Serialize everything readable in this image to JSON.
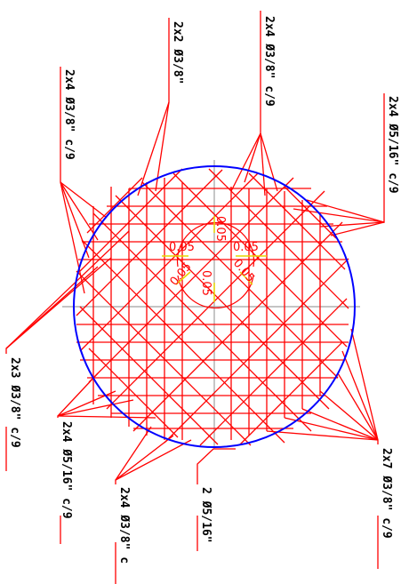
{
  "labels": {
    "l1": "2x4 Ø3/8\" c/9",
    "l2": "2x2 Ø3/8\"",
    "l3": "2x4 Ø3/8\" c/9",
    "l4": "2x4 Ø5/16\" c/9",
    "l5": "2x3 Ø3/8\" c/9",
    "l6": "2x4 Ø5/16\" c/9",
    "l7": "2x4 Ø3/8\" c",
    "l8": "2 Ø5/16\"",
    "l9": "2x7 Ø3/8\" c/9"
  },
  "dims": {
    "d1": "0.05",
    "d2": "0.05",
    "d3": "0.05",
    "d4": "0.05",
    "d5": "0.05",
    "d6": "0.05"
  },
  "colors": {
    "rebar": "#ff0000",
    "circle": "#0000ff",
    "axis": "#999999",
    "dim_tick": "#e6d800",
    "text": "#000000"
  }
}
